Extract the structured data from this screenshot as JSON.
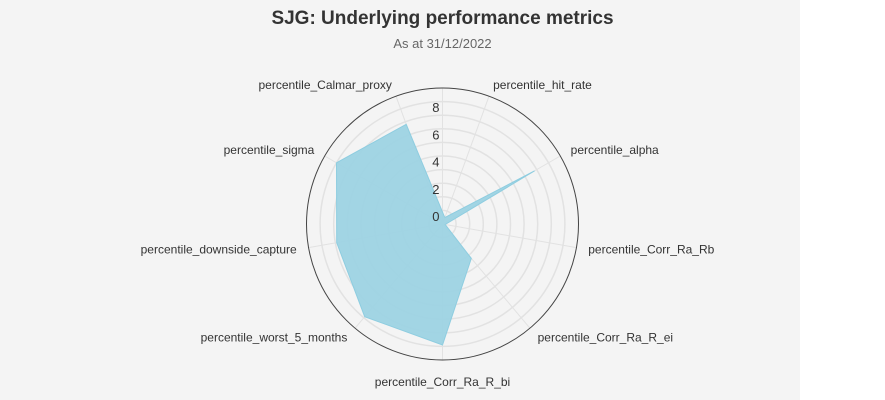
{
  "chart_data": {
    "type": "radar",
    "title": "SJG: Underlying performance metrics",
    "subtitle": "As at 31/12/2022",
    "categories": [
      "percentile_hit_rate",
      "percentile_alpha",
      "percentile_Corr_Ra_Rb",
      "percentile_Corr_Ra_R_ei",
      "percentile_Corr_Ra_R_bi",
      "percentile_worst_5_months",
      "percentile_downside_capture",
      "percentile_sigma",
      "percentile_Calmar_proxy"
    ],
    "values": [
      0.5,
      7.8,
      0.2,
      3.3,
      8.9,
      8.9,
      7.9,
      9.0,
      7.8
    ],
    "radial_range": [
      0,
      10
    ],
    "radial_ticks": [
      "0",
      "2",
      "4",
      "6",
      "8"
    ],
    "grid": true,
    "fill_color": "#9dd3e3",
    "background": "#f4f4f4"
  }
}
